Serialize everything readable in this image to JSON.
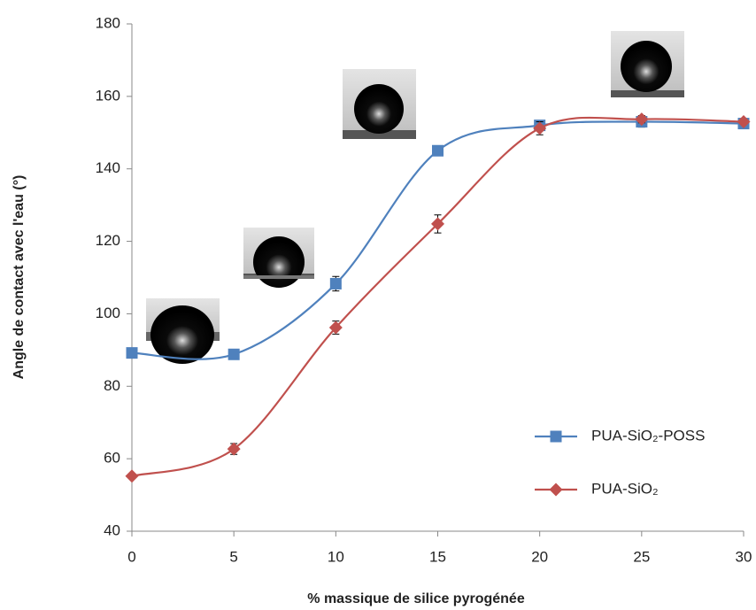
{
  "chart_data": {
    "type": "line",
    "x_label": "% massique de silice pyrogénée",
    "y_label": "Angle de contact avec l'eau (°)",
    "x": [
      0,
      5,
      10,
      15,
      20,
      25,
      30
    ],
    "series": [
      {
        "name": "PUA-SiO₂-POSS",
        "color": "#4f81bd",
        "marker": "square",
        "values": [
          89.2,
          88.8,
          108.3,
          145,
          152,
          153,
          152.5
        ],
        "errors": [
          0.5,
          0.5,
          2,
          0.5,
          0.5,
          1.5,
          0.5
        ]
      },
      {
        "name": "PUA-SiO₂",
        "color": "#c0504d",
        "marker": "diamond",
        "values": [
          55.2,
          62.7,
          96.2,
          124.8,
          151.2,
          153.7,
          153
        ],
        "errors": [
          0.5,
          1.5,
          1.8,
          2.5,
          1.8,
          1,
          0.5
        ]
      }
    ],
    "xlim": [
      0,
      30
    ],
    "xticks": [
      0,
      5,
      10,
      15,
      20,
      25,
      30
    ],
    "ylim": [
      40,
      180
    ],
    "yticks": [
      40,
      60,
      80,
      100,
      120,
      140,
      160,
      180
    ],
    "smooth": true,
    "grid": false,
    "legend": "lower right"
  }
}
